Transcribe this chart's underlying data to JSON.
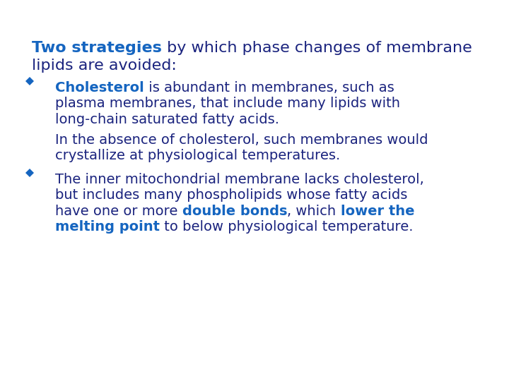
{
  "background_color": "#ffffff",
  "dark_blue": "#1a237e",
  "bright_blue": "#1565c0",
  "font_family": "DejaVu Sans",
  "figsize": [
    7.2,
    5.4
  ],
  "dpi": 100,
  "title_bold": "Two strategies",
  "title_rest_line1": " by which phase changes of membrane",
  "title_line2": "lipids are avoided:",
  "b1_bold": "Cholesterol",
  "b1_rest": " is abundant in membranes, such as",
  "b1_l2": "plasma membranes, that include many lipids with",
  "b1_l3": "long-chain saturated fatty acids.",
  "b1_sub1": "In the absence of cholesterol, such membranes would",
  "b1_sub2": "crystallize at physiological temperatures.",
  "b2_l1": "The inner mitochondrial membrane lacks cholesterol,",
  "b2_l2": "but includes many phospholipids whose fatty acids",
  "b2_l3a": "have one or more ",
  "b2_bold1": "double bonds",
  "b2_l3b": ", which ",
  "b2_bold2": "lower the",
  "b2_l4a": "melting point",
  "b2_l4b": " to below physiological temperature.",
  "title_fs": 16,
  "body_fs": 14
}
